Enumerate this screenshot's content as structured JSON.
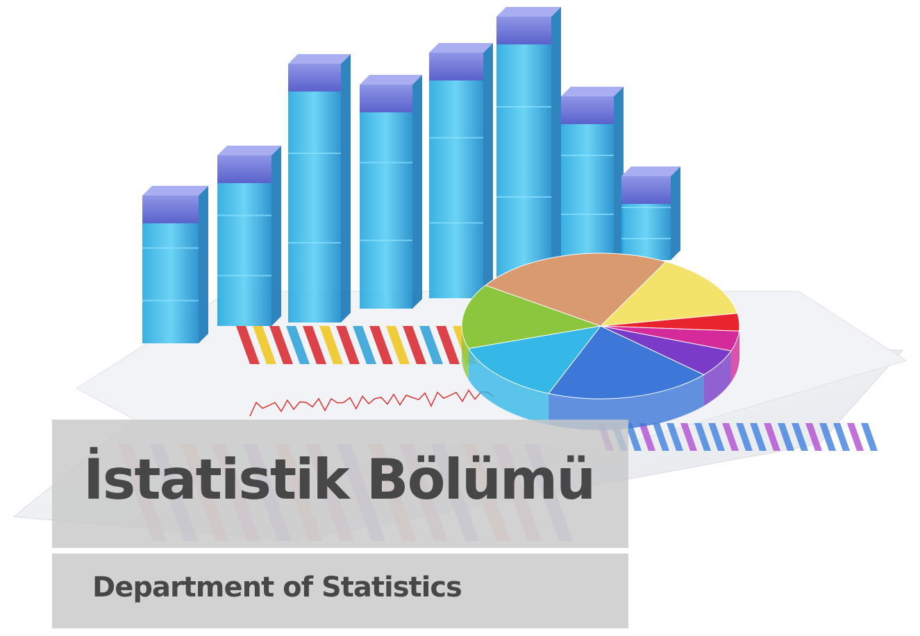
{
  "banner": {
    "title": "İstatistik Bölümü",
    "subtitle": "Department of Statistics"
  }
}
